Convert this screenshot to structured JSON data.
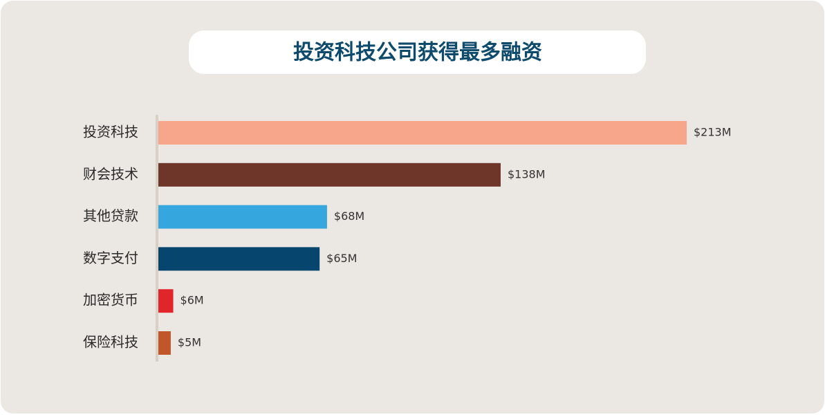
{
  "chart_data": {
    "type": "bar",
    "orientation": "horizontal",
    "title": "投资科技公司获得最多融资",
    "categories": [
      "投资科技",
      "财会技术",
      "其他贷款",
      "数字支付",
      "加密货币",
      "保险科技"
    ],
    "values": [
      213,
      138,
      68,
      65,
      6,
      5
    ],
    "value_labels": [
      "$213M",
      "$138M",
      "$68M",
      "$65M",
      "$6M",
      "$5M"
    ],
    "colors": [
      "#f7a68c",
      "#6e3629",
      "#35a6de",
      "#06466e",
      "#e0262a",
      "#c2562b"
    ]
  }
}
